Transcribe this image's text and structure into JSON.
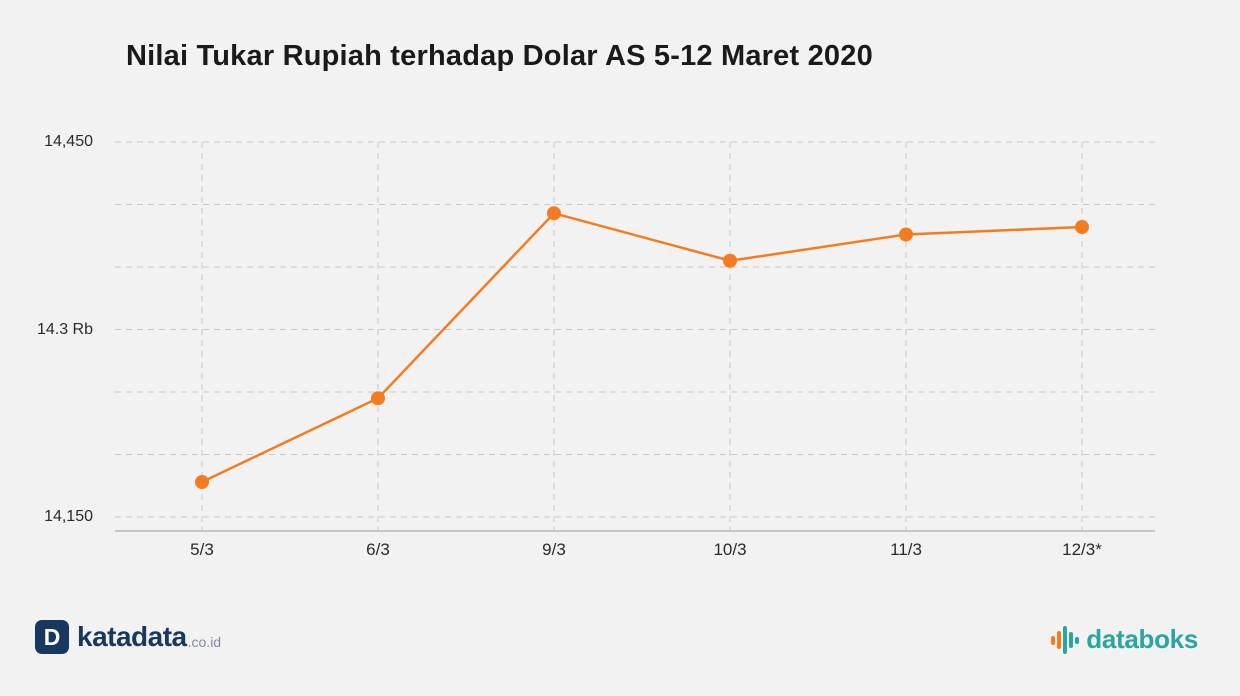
{
  "title": "Nilai Tukar Rupiah terhadap Dolar AS 5-12 Maret 2020",
  "chart_data": {
    "type": "line",
    "title": "Nilai Tukar Rupiah terhadap Dolar AS 5-12 Maret 2020",
    "categories": [
      "5/3",
      "6/3",
      "9/3",
      "10/3",
      "11/3",
      "12/3*"
    ],
    "series": [
      {
        "name": "Nilai Tukar Rupiah terhadap Dolar AS",
        "values": [
          14178,
          14245,
          14393,
          14355,
          14376,
          14382
        ]
      }
    ],
    "xlabel": "",
    "ylabel": "",
    "ylim": [
      14150,
      14450
    ],
    "grid_step": 50,
    "grid": true,
    "legend": "none",
    "y_tick_labels": [
      {
        "value": 14450,
        "label": "14,450"
      },
      {
        "value": 14300,
        "label": "14.3 Rb"
      },
      {
        "value": 14150,
        "label": "14,150"
      }
    ],
    "line_color": "#f47c20",
    "marker_color": "#f47c20"
  },
  "footer": {
    "katadata": {
      "mark": "D",
      "brand": "katadata",
      "suffix": ".co.id"
    },
    "databoks": {
      "brand": "databoks"
    }
  },
  "colors": {
    "background": "#f2f2f2",
    "accent_orange": "#f47c20",
    "katadata_navy": "#17395f",
    "databoks_teal": "#2aa5a0",
    "grid": "#c9c9c9",
    "text": "#1a1a1a"
  }
}
